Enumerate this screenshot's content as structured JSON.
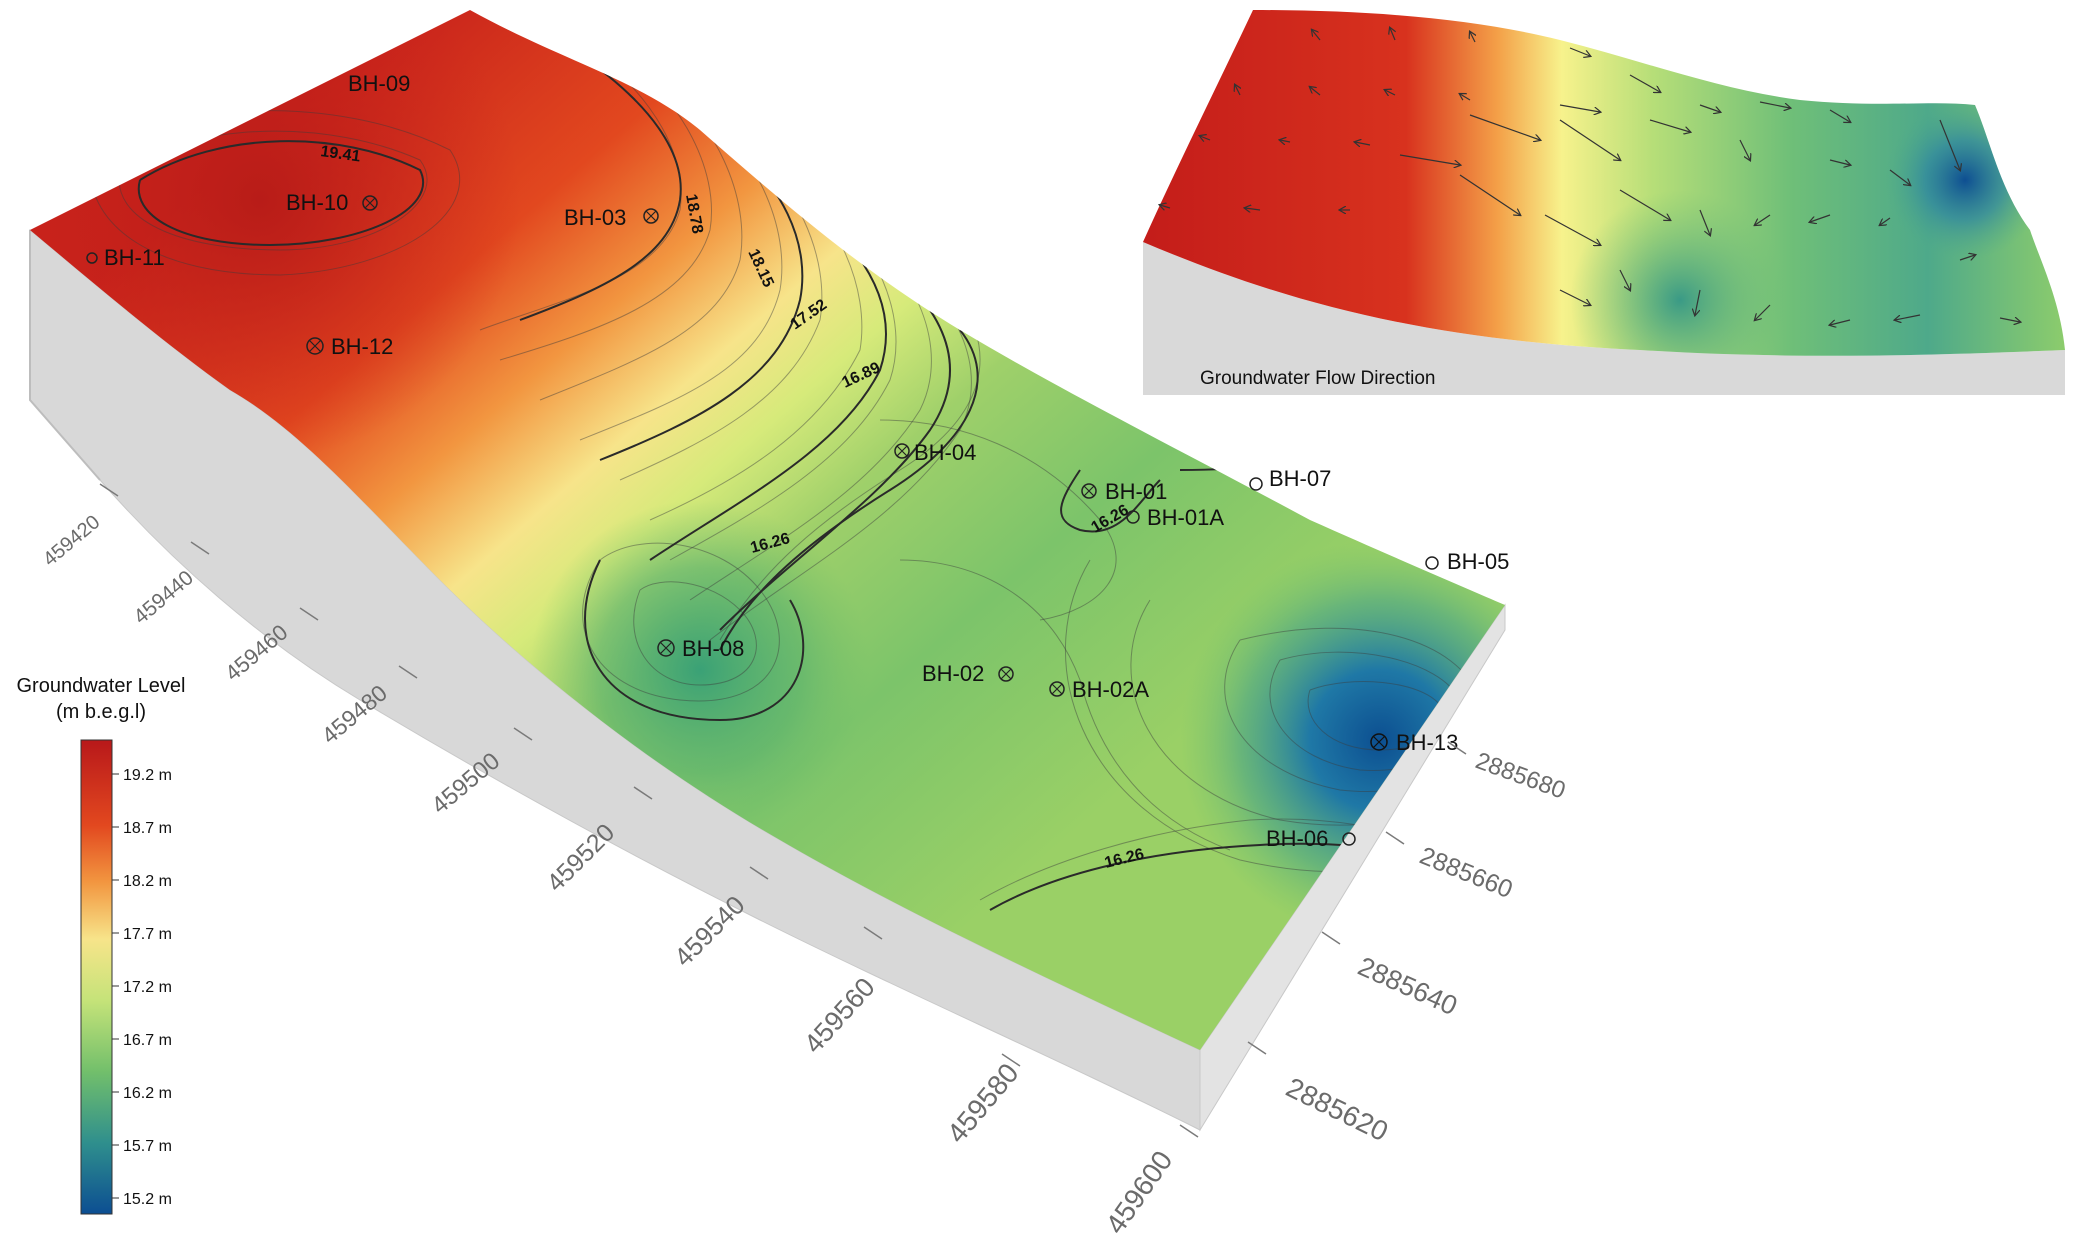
{
  "main_map": {
    "boreholes": [
      {
        "id": "BH-09"
      },
      {
        "id": "BH-10"
      },
      {
        "id": "BH-11"
      },
      {
        "id": "BH-12"
      },
      {
        "id": "BH-03"
      },
      {
        "id": "BH-04"
      },
      {
        "id": "BH-01"
      },
      {
        "id": "BH-01A"
      },
      {
        "id": "BH-07"
      },
      {
        "id": "BH-05"
      },
      {
        "id": "BH-08"
      },
      {
        "id": "BH-02"
      },
      {
        "id": "BH-02A"
      },
      {
        "id": "BH-13"
      },
      {
        "id": "BH-06"
      }
    ],
    "contour_labels": [
      "19.41",
      "18.78",
      "18.15",
      "17.52",
      "16.89",
      "16.26",
      "16.26",
      "16.26"
    ],
    "axis_x_ticks": [
      "459420",
      "459440",
      "459460",
      "459480",
      "459500",
      "459520",
      "459540",
      "459560",
      "459580",
      "459600"
    ],
    "axis_y_ticks": [
      "2885680",
      "2885660",
      "2885640",
      "2885620"
    ],
    "colors": {
      "high": "#c1271d",
      "mid": "#f5f08a",
      "low": "#0d5a96",
      "side": "#d9d9d9"
    }
  },
  "legend": {
    "title_line1": "Groundwater Level",
    "title_line2": "(m b.e.g.l)",
    "ticks": [
      "19.2 m",
      "18.7 m",
      "18.2 m",
      "17.7 m",
      "17.2 m",
      "16.7 m",
      "16.2 m",
      "15.7 m",
      "15.2 m"
    ]
  },
  "inset": {
    "caption": "Groundwater Flow Direction"
  }
}
